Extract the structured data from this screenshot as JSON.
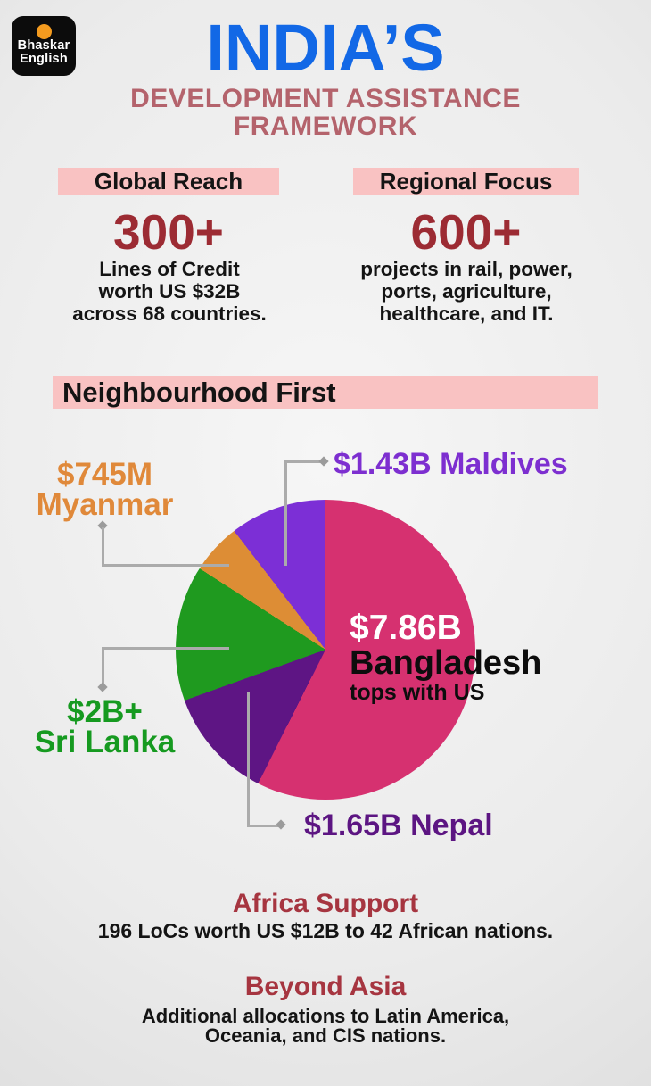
{
  "logo": {
    "line1": "Bhaskar",
    "line2": "English"
  },
  "header": {
    "title": "INDIA’S",
    "subtitle_line1": "DEVELOPMENT ASSISTANCE",
    "subtitle_line2": "FRAMEWORK"
  },
  "global_reach": {
    "heading": "Global Reach",
    "number": "300+",
    "line1": "Lines of Credit",
    "line2": "worth US $32B",
    "line3": "across 68 countries."
  },
  "regional_focus": {
    "heading": "Regional Focus",
    "number": "600+",
    "line1": "projects in rail, power,",
    "line2": "ports, agriculture,",
    "line3": "healthcare, and IT."
  },
  "neighbourhood_first": {
    "heading": "Neighbourhood First"
  },
  "chart_data": {
    "type": "pie",
    "title": "Neighbourhood First",
    "unit": "US$ billions",
    "direction": "clockwise",
    "start_angle_deg": 0,
    "legend_position": "callout-labels",
    "slices": [
      {
        "label": "Bangladesh",
        "value_text": "$7.86B",
        "value": 7.86,
        "color": "#d63170"
      },
      {
        "label": "Nepal",
        "value_text": "$1.65B",
        "value": 1.65,
        "color": "#5e1584"
      },
      {
        "label": "Sri Lanka",
        "value_text": "$2B+",
        "value": 2.0,
        "color": "#1f9a1f"
      },
      {
        "label": "Myanmar",
        "value_text": "$745M",
        "value": 0.745,
        "color": "#dd8d35"
      },
      {
        "label": "Maldives",
        "value_text": "$1.43B",
        "value": 1.43,
        "color": "#7c2fd6"
      }
    ]
  },
  "pie_labels": {
    "maldives": {
      "text": "$1.43B Maldives"
    },
    "myanmar": {
      "line1": "$745M",
      "line2": "Myanmar"
    },
    "sri_lanka": {
      "line1": "$2B+",
      "line2": "Sri Lanka"
    },
    "nepal": {
      "text": "$1.65B Nepal"
    },
    "bangladesh": {
      "value": "$7.86B",
      "name": "Bangladesh",
      "note": "tops with US"
    }
  },
  "africa_support": {
    "heading": "Africa Support",
    "text": "196 LoCs worth US $12B to 42 African nations."
  },
  "beyond_asia": {
    "heading": "Beyond Asia",
    "line1": "Additional allocations to Latin America,",
    "line2": "Oceania, and CIS nations."
  },
  "colors": {
    "title_blue": "#1268e6",
    "subtitle_rose": "#b4636c",
    "highlight_pink": "#f9c2c2",
    "stat_number_red": "#9c2b33",
    "section_heading_red": "#a63540",
    "body_text": "#141414",
    "background_gray": "#e9e9e9",
    "logo_background": "#0c0c0c",
    "logo_dot_orange": "#f49b1f",
    "leader_line_gray": "#ababab",
    "label_maldives_purple": "#7d2fd0",
    "label_myanmar_orange": "#e0893a",
    "label_sri_lanka_green": "#169a20",
    "label_nepal_purple": "#5c1582",
    "center_value_white": "#ffffff"
  }
}
